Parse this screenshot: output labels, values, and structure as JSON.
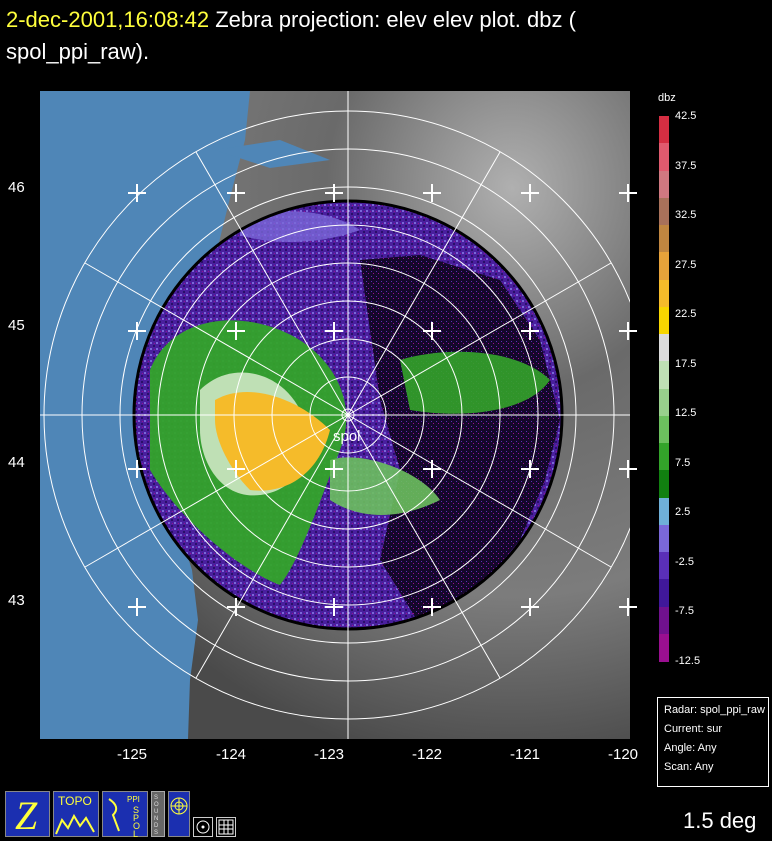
{
  "header": {
    "timestamp": "2-dec-2001,16:08:42",
    "title_line1": "Zebra projection: elev elev  plot.  dbz (",
    "title_line2": "spol_ppi_raw)."
  },
  "map": {
    "radar_label": "spol",
    "lat_labels": [
      "46",
      "45",
      "44",
      "43"
    ],
    "lon_labels": [
      "-125",
      "-124",
      "-123",
      "-122",
      "-121",
      "-120"
    ],
    "colors": {
      "ocean": "#4f86b7",
      "background": "#000000",
      "rings": "#ffffff"
    }
  },
  "colorbar": {
    "unit": "dbz",
    "labels": [
      "42.5",
      "37.5",
      "32.5",
      "27.5",
      "22.5",
      "17.5",
      "12.5",
      "7.5",
      "2.5",
      "-2.5",
      "-7.5",
      "-12.5"
    ],
    "colors": [
      "#d42e42",
      "#e05a6e",
      "#d07880",
      "#a8715a",
      "#c08640",
      "#e6a23a",
      "#f5bb2a",
      "#f7d600",
      "#dcdcdc",
      "#bfe0b5",
      "#98d08c",
      "#6cc05e",
      "#33a42a",
      "#118010",
      "#6fb0d8",
      "#7a68d8",
      "#5a2fb8",
      "#40189a",
      "#70118e",
      "#9a0f90"
    ]
  },
  "info_box": {
    "radar": "Radar: spol_ppi_raw",
    "current": "Current: sur",
    "angle": "Angle: Any",
    "scan": "Scan: Any"
  },
  "status": {
    "elevation": "1.5 deg"
  },
  "toolbar": {
    "zebra_letter": "Z",
    "topo_label": "TOPO",
    "ppi_label": "PPI",
    "spol_label": "SPOL",
    "sounds_label": "SOUNDS"
  }
}
